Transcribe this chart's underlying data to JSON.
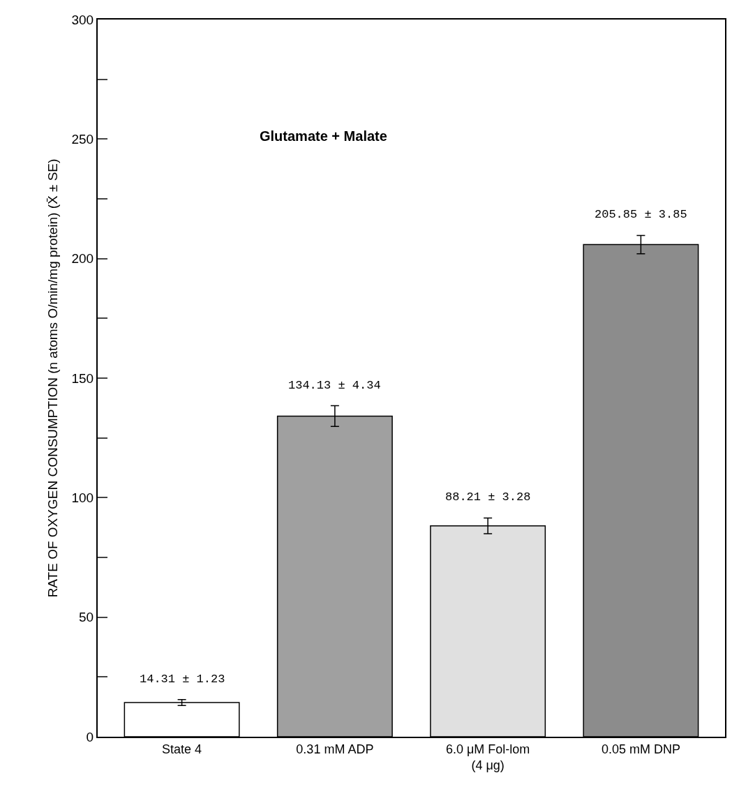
{
  "chart_data": {
    "type": "bar",
    "title": "Glutamate + Malate",
    "ylabel": "RATE OF OXYGEN CONSUMPTION (n atoms O/min/mg protein) (X̄ ± SE)",
    "categories": [
      "State 4",
      "0.31 mM ADP",
      "6.0 μM Fol-lom\n(4 μg)",
      "0.05 mM DNP"
    ],
    "values": [
      14.31,
      134.13,
      88.21,
      205.85
    ],
    "errors": [
      1.23,
      4.34,
      3.28,
      3.85
    ],
    "value_labels": [
      "14.31 ± 1.23",
      "134.13 ± 4.34",
      "88.21 ± 3.28",
      "205.85 ± 3.85"
    ],
    "colors": [
      "#ffffff",
      "#a0a0a0",
      "#e0e0e0",
      "#8c8c8c"
    ],
    "ylim": [
      0,
      300
    ],
    "yticks": [
      0,
      {
        "value": 25,
        "label": null
      },
      50,
      {
        "value": 75,
        "label": null
      },
      100,
      {
        "value": 125,
        "label": null
      },
      150,
      {
        "value": 175,
        "label": null
      },
      200,
      {
        "value": 225,
        "label": null
      },
      250,
      {
        "value": 275,
        "label": null
      },
      300
    ]
  }
}
